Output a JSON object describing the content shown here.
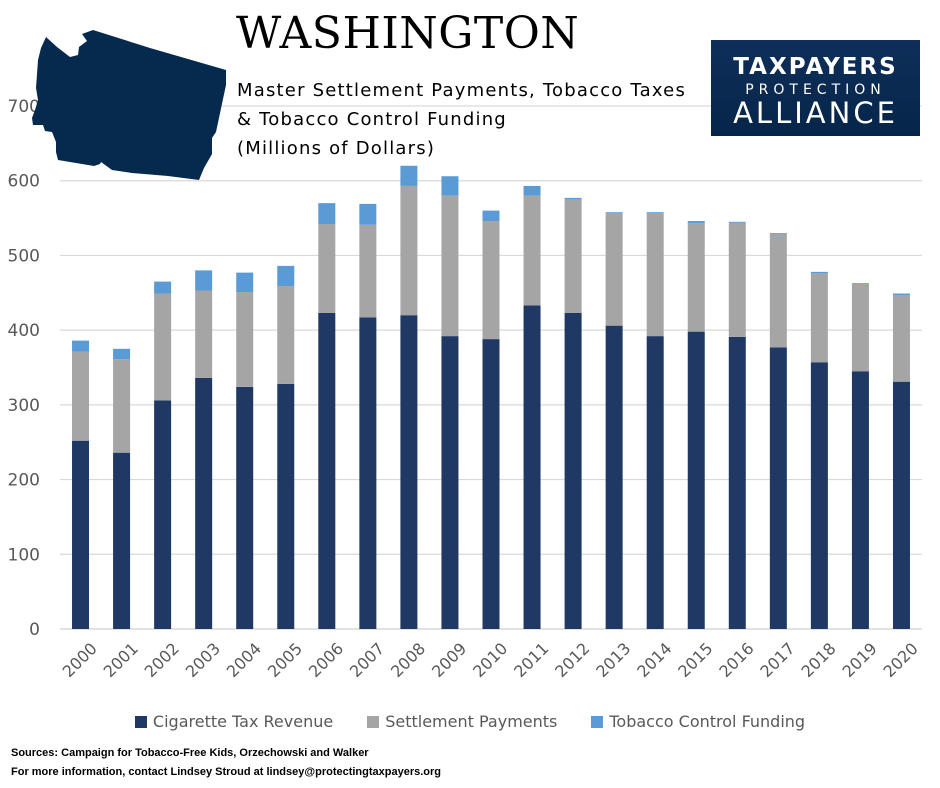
{
  "header": {
    "title": "WASHINGTON",
    "subtitle_lines": [
      "Master Settlement Payments, Tobacco Taxes",
      "& Tobacco Control Funding",
      "(Millions of Dollars)"
    ]
  },
  "logo": {
    "line1": "TAXPAYERS",
    "line2": "PROTECTION",
    "line3": "ALLIANCE",
    "bg_color": "#0a2a52"
  },
  "state_shape": {
    "name": "washington-state-silhouette",
    "color": "#062a4e"
  },
  "footer": {
    "sources": "Sources: Campaign for Tobacco-Free Kids, Orzechowski and Walker",
    "contact": "For more information, contact Lindsey Stroud at lindsey@protectingtaxpayers.org"
  },
  "chart_data": {
    "type": "bar",
    "stacked": true,
    "title": "Master Settlement Payments, Tobacco Taxes & Tobacco Control Funding (Millions of Dollars)",
    "xlabel": "",
    "ylabel": "",
    "ylim": [
      0,
      700
    ],
    "yticks": [
      0,
      100,
      200,
      300,
      400,
      500,
      600,
      700
    ],
    "grid": true,
    "legend_position": "bottom",
    "categories": [
      "2000",
      "2001",
      "2002",
      "2003",
      "2004",
      "2005",
      "2006",
      "2007",
      "2008",
      "2009",
      "2010",
      "2011",
      "2012",
      "2013",
      "2014",
      "2015",
      "2016",
      "2017",
      "2018",
      "2019",
      "2020"
    ],
    "series": [
      {
        "name": "Cigarette Tax Revenue",
        "color": "#203864",
        "values": [
          252,
          236,
          306,
          336,
          324,
          328,
          423,
          417,
          420,
          392,
          388,
          433,
          423,
          406,
          392,
          398,
          391,
          377,
          357,
          345,
          331
        ]
      },
      {
        "name": "Settlement Payments",
        "color": "#a5a5a5",
        "values": [
          119,
          125,
          143,
          117,
          127,
          131,
          119,
          124,
          173,
          188,
          158,
          147,
          152,
          151,
          165,
          145,
          153,
          152,
          119,
          117,
          116
        ]
      },
      {
        "name": "Tobacco Control Funding",
        "color": "#5b9bd5",
        "values": [
          15,
          14,
          16,
          27,
          26,
          27,
          28,
          28,
          27,
          26,
          14,
          13,
          2,
          1,
          1,
          3,
          1,
          1,
          2,
          1,
          2
        ]
      }
    ]
  }
}
